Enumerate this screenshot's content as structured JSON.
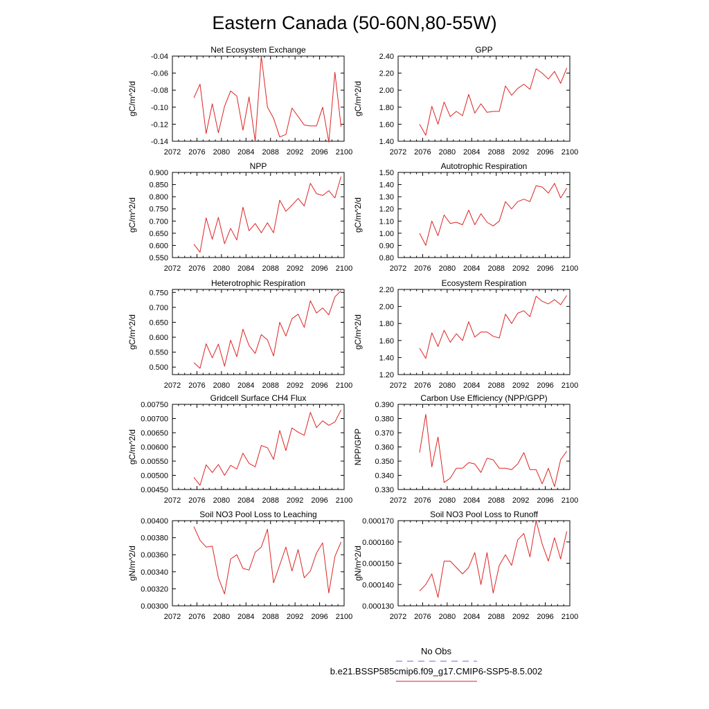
{
  "figure": {
    "title": "Eastern Canada (50-60N,80-55W)"
  },
  "legend": {
    "entries": [
      {
        "label": "No Obs",
        "color": "#6666dd",
        "dash": true
      },
      {
        "label": "b.e21.BSSP585cmip6.f09_g17.CMIP6-SSP5-8.5.002",
        "color": "#dd2222",
        "dash": false
      }
    ]
  },
  "chart_data": [
    {
      "type": "line",
      "title": "Net Ecosystem Exchange",
      "ylabel": "gC/m^2/d",
      "xlim": [
        2072,
        2100
      ],
      "xticks": [
        "2072",
        "2076",
        "2080",
        "2084",
        "2088",
        "2092",
        "2096",
        "2100"
      ],
      "ylim": [
        -0.14,
        -0.04
      ],
      "yticks": [
        "-0.14",
        "-0.12",
        "-0.10",
        "-0.08",
        "-0.06",
        "-0.04"
      ],
      "x": [
        2075.5,
        2076.5,
        2077.5,
        2078.5,
        2079.5,
        2080.5,
        2081.5,
        2082.5,
        2083.5,
        2084.5,
        2085.5,
        2086.5,
        2087.5,
        2088.5,
        2089.5,
        2090.5,
        2091.5,
        2092.5,
        2093.5,
        2094.5,
        2095.5,
        2096.5,
        2097.5,
        2098.5,
        2099.5
      ],
      "series": [
        {
          "color": "#dd2222",
          "values": [
            -0.089,
            -0.073,
            -0.131,
            -0.096,
            -0.13,
            -0.099,
            -0.081,
            -0.087,
            -0.127,
            -0.088,
            -0.14,
            -0.04,
            -0.1,
            -0.113,
            -0.135,
            -0.132,
            -0.101,
            -0.111,
            -0.121,
            -0.122,
            -0.122,
            -0.1,
            -0.141,
            -0.059,
            -0.123
          ]
        }
      ]
    },
    {
      "type": "line",
      "title": "GPP",
      "ylabel": "gC/m^2/d",
      "xlim": [
        2072,
        2100
      ],
      "xticks": [
        "2072",
        "2076",
        "2080",
        "2084",
        "2088",
        "2092",
        "2096",
        "2100"
      ],
      "ylim": [
        1.4,
        2.4
      ],
      "yticks": [
        "1.40",
        "1.60",
        "1.80",
        "2.00",
        "2.20",
        "2.40"
      ],
      "x": [
        2075.5,
        2076.5,
        2077.5,
        2078.5,
        2079.5,
        2080.5,
        2081.5,
        2082.5,
        2083.5,
        2084.5,
        2085.5,
        2086.5,
        2087.5,
        2088.5,
        2089.5,
        2090.5,
        2091.5,
        2092.5,
        2093.5,
        2094.5,
        2095.5,
        2096.5,
        2097.5,
        2098.5,
        2099.5
      ],
      "series": [
        {
          "color": "#dd2222",
          "values": [
            1.6,
            1.47,
            1.81,
            1.6,
            1.86,
            1.69,
            1.75,
            1.7,
            1.95,
            1.73,
            1.84,
            1.74,
            1.75,
            1.75,
            2.05,
            1.94,
            2.02,
            2.07,
            2.01,
            2.25,
            2.2,
            2.13,
            2.22,
            2.08,
            2.26
          ]
        }
      ]
    },
    {
      "type": "line",
      "title": "NPP",
      "ylabel": "gC/m^2/d",
      "xlim": [
        2072,
        2100
      ],
      "xticks": [
        "2072",
        "2076",
        "2080",
        "2084",
        "2088",
        "2092",
        "2096",
        "2100"
      ],
      "ylim": [
        0.55,
        0.9
      ],
      "yticks": [
        "0.550",
        "0.600",
        "0.650",
        "0.700",
        "0.750",
        "0.800",
        "0.850",
        "0.900"
      ],
      "x": [
        2075.5,
        2076.5,
        2077.5,
        2078.5,
        2079.5,
        2080.5,
        2081.5,
        2082.5,
        2083.5,
        2084.5,
        2085.5,
        2086.5,
        2087.5,
        2088.5,
        2089.5,
        2090.5,
        2091.5,
        2092.5,
        2093.5,
        2094.5,
        2095.5,
        2096.5,
        2097.5,
        2098.5,
        2099.5
      ],
      "series": [
        {
          "color": "#dd2222",
          "values": [
            0.605,
            0.572,
            0.713,
            0.625,
            0.715,
            0.607,
            0.67,
            0.622,
            0.757,
            0.66,
            0.69,
            0.652,
            0.693,
            0.652,
            0.786,
            0.74,
            0.765,
            0.793,
            0.762,
            0.855,
            0.813,
            0.805,
            0.825,
            0.795,
            0.883
          ]
        }
      ]
    },
    {
      "type": "line",
      "title": "Autotrophic Respiration",
      "ylabel": "gC/m^2/d",
      "xlim": [
        2072,
        2100
      ],
      "xticks": [
        "2072",
        "2076",
        "2080",
        "2084",
        "2088",
        "2092",
        "2096",
        "2100"
      ],
      "ylim": [
        0.8,
        1.5
      ],
      "yticks": [
        "0.80",
        "0.90",
        "1.00",
        "1.10",
        "1.20",
        "1.30",
        "1.40",
        "1.50"
      ],
      "x": [
        2075.5,
        2076.5,
        2077.5,
        2078.5,
        2079.5,
        2080.5,
        2081.5,
        2082.5,
        2083.5,
        2084.5,
        2085.5,
        2086.5,
        2087.5,
        2088.5,
        2089.5,
        2090.5,
        2091.5,
        2092.5,
        2093.5,
        2094.5,
        2095.5,
        2096.5,
        2097.5,
        2098.5,
        2099.5
      ],
      "series": [
        {
          "color": "#dd2222",
          "values": [
            1.0,
            0.9,
            1.1,
            0.98,
            1.15,
            1.08,
            1.09,
            1.07,
            1.19,
            1.07,
            1.16,
            1.09,
            1.06,
            1.1,
            1.26,
            1.2,
            1.26,
            1.28,
            1.26,
            1.39,
            1.38,
            1.33,
            1.41,
            1.29,
            1.37
          ]
        }
      ]
    },
    {
      "type": "line",
      "title": "Heterotrophic Respiration",
      "ylabel": "gC/m^2/d",
      "xlim": [
        2072,
        2100
      ],
      "xticks": [
        "2072",
        "2076",
        "2080",
        "2084",
        "2088",
        "2092",
        "2096",
        "2100"
      ],
      "ylim": [
        0.475,
        0.76
      ],
      "yticks": [
        "0.500",
        "0.550",
        "0.600",
        "0.650",
        "0.700",
        "0.750"
      ],
      "x": [
        2075.5,
        2076.5,
        2077.5,
        2078.5,
        2079.5,
        2080.5,
        2081.5,
        2082.5,
        2083.5,
        2084.5,
        2085.5,
        2086.5,
        2087.5,
        2088.5,
        2089.5,
        2090.5,
        2091.5,
        2092.5,
        2093.5,
        2094.5,
        2095.5,
        2096.5,
        2097.5,
        2098.5,
        2099.5
      ],
      "series": [
        {
          "color": "#dd2222",
          "values": [
            0.515,
            0.496,
            0.578,
            0.531,
            0.577,
            0.503,
            0.59,
            0.535,
            0.627,
            0.572,
            0.546,
            0.609,
            0.591,
            0.537,
            0.65,
            0.604,
            0.662,
            0.677,
            0.633,
            0.722,
            0.681,
            0.698,
            0.675,
            0.735,
            0.756
          ]
        }
      ]
    },
    {
      "type": "line",
      "title": "Ecosystem Respiration",
      "ylabel": "gC/m^2/d",
      "xlim": [
        2072,
        2100
      ],
      "xticks": [
        "2072",
        "2076",
        "2080",
        "2084",
        "2088",
        "2092",
        "2096",
        "2100"
      ],
      "ylim": [
        1.2,
        2.2
      ],
      "yticks": [
        "1.20",
        "1.40",
        "1.60",
        "1.80",
        "2.00",
        "2.20"
      ],
      "x": [
        2075.5,
        2076.5,
        2077.5,
        2078.5,
        2079.5,
        2080.5,
        2081.5,
        2082.5,
        2083.5,
        2084.5,
        2085.5,
        2086.5,
        2087.5,
        2088.5,
        2089.5,
        2090.5,
        2091.5,
        2092.5,
        2093.5,
        2094.5,
        2095.5,
        2096.5,
        2097.5,
        2098.5,
        2099.5
      ],
      "series": [
        {
          "color": "#dd2222",
          "values": [
            1.51,
            1.39,
            1.69,
            1.53,
            1.72,
            1.58,
            1.68,
            1.6,
            1.82,
            1.64,
            1.7,
            1.7,
            1.65,
            1.63,
            1.91,
            1.8,
            1.92,
            1.95,
            1.88,
            2.12,
            2.06,
            2.03,
            2.08,
            2.02,
            2.13
          ]
        }
      ]
    },
    {
      "type": "line",
      "title": "Gridcell Surface CH4 Flux",
      "ylabel": "gC/m^2/d",
      "xlim": [
        2072,
        2100
      ],
      "xticks": [
        "2072",
        "2076",
        "2080",
        "2084",
        "2088",
        "2092",
        "2096",
        "2100"
      ],
      "ylim": [
        0.0045,
        0.0075
      ],
      "yticks": [
        "0.00450",
        "0.00500",
        "0.00550",
        "0.00600",
        "0.00650",
        "0.00700",
        "0.00750"
      ],
      "x": [
        2075.5,
        2076.5,
        2077.5,
        2078.5,
        2079.5,
        2080.5,
        2081.5,
        2082.5,
        2083.5,
        2084.5,
        2085.5,
        2086.5,
        2087.5,
        2088.5,
        2089.5,
        2090.5,
        2091.5,
        2092.5,
        2093.5,
        2094.5,
        2095.5,
        2096.5,
        2097.5,
        2098.5,
        2099.5
      ],
      "series": [
        {
          "color": "#dd2222",
          "values": [
            0.00493,
            0.00465,
            0.00537,
            0.0051,
            0.00538,
            0.005,
            0.00535,
            0.00522,
            0.00578,
            0.00542,
            0.0053,
            0.00605,
            0.00597,
            0.00556,
            0.00658,
            0.00587,
            0.00667,
            0.00652,
            0.00641,
            0.00722,
            0.00668,
            0.00692,
            0.00676,
            0.00688,
            0.0073
          ]
        }
      ]
    },
    {
      "type": "line",
      "title": "Carbon Use Efficiency (NPP/GPP)",
      "ylabel": "NPP/GPP",
      "xlim": [
        2072,
        2100
      ],
      "xticks": [
        "2072",
        "2076",
        "2080",
        "2084",
        "2088",
        "2092",
        "2096",
        "2100"
      ],
      "ylim": [
        0.33,
        0.39
      ],
      "yticks": [
        "0.330",
        "0.340",
        "0.350",
        "0.360",
        "0.370",
        "0.380",
        "0.390"
      ],
      "x": [
        2075.5,
        2076.5,
        2077.5,
        2078.5,
        2079.5,
        2080.5,
        2081.5,
        2082.5,
        2083.5,
        2084.5,
        2085.5,
        2086.5,
        2087.5,
        2088.5,
        2089.5,
        2090.5,
        2091.5,
        2092.5,
        2093.5,
        2094.5,
        2095.5,
        2096.5,
        2097.5,
        2098.5,
        2099.5
      ],
      "series": [
        {
          "color": "#dd2222",
          "values": [
            0.356,
            0.383,
            0.346,
            0.367,
            0.335,
            0.338,
            0.345,
            0.345,
            0.349,
            0.348,
            0.342,
            0.352,
            0.351,
            0.345,
            0.345,
            0.344,
            0.348,
            0.356,
            0.344,
            0.344,
            0.334,
            0.345,
            0.332,
            0.351,
            0.357
          ]
        }
      ]
    },
    {
      "type": "line",
      "title": "Soil NO3 Pool Loss to Leaching",
      "ylabel": "gN/m^2/d",
      "xlim": [
        2072,
        2100
      ],
      "xticks": [
        "2072",
        "2076",
        "2080",
        "2084",
        "2088",
        "2092",
        "2096",
        "2100"
      ],
      "ylim": [
        0.003,
        0.004
      ],
      "yticks": [
        "0.00300",
        "0.00320",
        "0.00340",
        "0.00360",
        "0.00380",
        "0.00400"
      ],
      "x": [
        2075.5,
        2076.5,
        2077.5,
        2078.5,
        2079.5,
        2080.5,
        2081.5,
        2082.5,
        2083.5,
        2084.5,
        2085.5,
        2086.5,
        2087.5,
        2088.5,
        2089.5,
        2090.5,
        2091.5,
        2092.5,
        2093.5,
        2094.5,
        2095.5,
        2096.5,
        2097.5,
        2098.5,
        2099.5
      ],
      "series": [
        {
          "color": "#dd2222",
          "values": [
            0.00393,
            0.00377,
            0.00369,
            0.0037,
            0.00333,
            0.00314,
            0.00355,
            0.0036,
            0.00344,
            0.00342,
            0.00363,
            0.00369,
            0.0039,
            0.00327,
            0.00348,
            0.00369,
            0.00341,
            0.00366,
            0.00333,
            0.00341,
            0.00362,
            0.00374,
            0.00315,
            0.00358,
            0.00375
          ]
        }
      ]
    },
    {
      "type": "line",
      "title": "Soil NO3 Pool Loss to Runoff",
      "ylabel": "gN/m^2/d",
      "xlim": [
        2072,
        2100
      ],
      "xticks": [
        "2072",
        "2076",
        "2080",
        "2084",
        "2088",
        "2092",
        "2096",
        "2100"
      ],
      "ylim": [
        0.00013,
        0.00017
      ],
      "yticks": [
        "0.000130",
        "0.000140",
        "0.000150",
        "0.000160",
        "0.000170"
      ],
      "x": [
        2075.5,
        2076.5,
        2077.5,
        2078.5,
        2079.5,
        2080.5,
        2081.5,
        2082.5,
        2083.5,
        2084.5,
        2085.5,
        2086.5,
        2087.5,
        2088.5,
        2089.5,
        2090.5,
        2091.5,
        2092.5,
        2093.5,
        2094.5,
        2095.5,
        2096.5,
        2097.5,
        2098.5,
        2099.5
      ],
      "series": [
        {
          "color": "#dd2222",
          "values": [
            0.000137,
            0.00014,
            0.000145,
            0.000134,
            0.000151,
            0.000151,
            0.000148,
            0.000145,
            0.000148,
            0.000155,
            0.00014,
            0.000155,
            0.000136,
            0.000149,
            0.000154,
            0.000149,
            0.000161,
            0.000164,
            0.000153,
            0.00017,
            0.000159,
            0.000151,
            0.000162,
            0.000152,
            0.000165
          ]
        }
      ]
    }
  ]
}
